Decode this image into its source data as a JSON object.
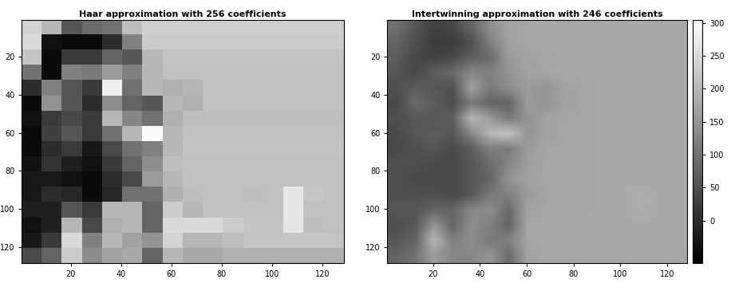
{
  "chart_data": [
    {
      "type": "heatmap",
      "title": "Haar approximation with 256 coefficients",
      "xlim": [
        0.5,
        128.5
      ],
      "ylim": [
        128.5,
        0.5
      ],
      "xticks": [
        20,
        40,
        60,
        80,
        100,
        120
      ],
      "yticks": [
        20,
        40,
        60,
        80,
        100,
        120
      ],
      "color_range": [
        -65,
        305
      ],
      "cells": [
        [
          240,
          200,
          60,
          90,
          100,
          210,
          235,
          235,
          235,
          235,
          235,
          235,
          235,
          235,
          235,
          235
        ],
        [
          250,
          -40,
          -50,
          -50,
          0,
          120,
          230,
          230,
          230,
          230,
          230,
          230,
          230,
          230,
          230,
          230
        ],
        [
          220,
          -50,
          20,
          20,
          80,
          60,
          200,
          220,
          220,
          220,
          220,
          220,
          220,
          220,
          220,
          220
        ],
        [
          100,
          -50,
          120,
          110,
          160,
          120,
          200,
          215,
          215,
          215,
          215,
          215,
          215,
          215,
          215,
          215
        ],
        [
          0,
          120,
          60,
          20,
          280,
          100,
          200,
          190,
          200,
          215,
          215,
          215,
          215,
          215,
          215,
          215
        ],
        [
          -50,
          150,
          60,
          0,
          140,
          80,
          60,
          200,
          190,
          215,
          215,
          215,
          215,
          215,
          215,
          215
        ],
        [
          -40,
          20,
          40,
          20,
          200,
          130,
          100,
          190,
          210,
          210,
          210,
          210,
          210,
          210,
          210,
          210
        ],
        [
          -50,
          30,
          60,
          20,
          100,
          200,
          300,
          200,
          215,
          215,
          215,
          215,
          215,
          215,
          215,
          215
        ],
        [
          -50,
          0,
          20,
          -30,
          40,
          100,
          120,
          200,
          220,
          220,
          220,
          220,
          220,
          220,
          220,
          220
        ],
        [
          -40,
          10,
          -20,
          -40,
          20,
          80,
          140,
          210,
          215,
          215,
          215,
          215,
          215,
          215,
          215,
          215
        ],
        [
          -30,
          -30,
          -40,
          -50,
          0,
          40,
          160,
          200,
          215,
          215,
          215,
          215,
          215,
          215,
          215,
          215
        ],
        [
          -30,
          0,
          -10,
          -50,
          -10,
          100,
          100,
          190,
          210,
          215,
          215,
          210,
          215,
          270,
          220,
          215
        ],
        [
          -20,
          -20,
          60,
          20,
          200,
          200,
          80,
          230,
          200,
          215,
          215,
          215,
          215,
          270,
          215,
          215
        ],
        [
          -40,
          -20,
          200,
          40,
          190,
          200,
          80,
          250,
          250,
          250,
          230,
          220,
          220,
          270,
          210,
          215
        ],
        [
          -30,
          20,
          250,
          120,
          200,
          170,
          150,
          240,
          200,
          200,
          210,
          220,
          220,
          220,
          220,
          220
        ],
        [
          40,
          80,
          230,
          140,
          170,
          180,
          80,
          200,
          180,
          180,
          190,
          190,
          190,
          190,
          190,
          190
        ]
      ]
    },
    {
      "type": "heatmap",
      "title": "Intertwinning approximation with 246 coefficients",
      "xlim": [
        0.5,
        128.5
      ],
      "ylim": [
        128.5,
        0.5
      ],
      "xticks": [
        20,
        40,
        60,
        80,
        100,
        120
      ],
      "yticks": [
        20,
        40,
        60,
        80,
        100,
        120
      ],
      "colorbar_range": [
        -65,
        305
      ],
      "colorbar_ticks": [
        0,
        50,
        100,
        150,
        200,
        250,
        300
      ],
      "cells": [
        [
          100,
          60,
          30,
          40,
          80,
          140,
          170,
          175,
          180,
          180,
          180,
          180,
          180,
          180,
          180,
          180
        ],
        [
          80,
          50,
          20,
          20,
          50,
          120,
          170,
          175,
          180,
          180,
          180,
          180,
          180,
          180,
          180,
          180
        ],
        [
          70,
          40,
          30,
          40,
          70,
          90,
          160,
          170,
          175,
          180,
          180,
          180,
          180,
          180,
          180,
          180
        ],
        [
          60,
          40,
          70,
          90,
          130,
          120,
          150,
          170,
          175,
          180,
          180,
          180,
          180,
          180,
          180,
          180
        ],
        [
          50,
          70,
          60,
          50,
          170,
          110,
          140,
          160,
          150,
          170,
          175,
          180,
          180,
          180,
          180,
          180
        ],
        [
          40,
          90,
          70,
          50,
          110,
          80,
          80,
          160,
          150,
          170,
          175,
          180,
          180,
          180,
          180,
          180
        ],
        [
          50,
          60,
          60,
          70,
          200,
          160,
          110,
          150,
          170,
          175,
          175,
          180,
          180,
          180,
          180,
          180
        ],
        [
          40,
          60,
          70,
          60,
          130,
          200,
          220,
          150,
          170,
          175,
          175,
          180,
          180,
          180,
          180,
          180
        ],
        [
          40,
          50,
          60,
          40,
          70,
          120,
          110,
          160,
          175,
          175,
          175,
          180,
          180,
          180,
          180,
          180
        ],
        [
          50,
          50,
          40,
          40,
          60,
          90,
          130,
          165,
          175,
          175,
          175,
          180,
          180,
          180,
          180,
          180
        ],
        [
          50,
          40,
          40,
          40,
          60,
          80,
          150,
          170,
          175,
          175,
          175,
          180,
          180,
          180,
          180,
          180
        ],
        [
          50,
          50,
          50,
          40,
          60,
          110,
          120,
          160,
          175,
          175,
          175,
          180,
          180,
          185,
          180,
          180
        ],
        [
          60,
          60,
          80,
          80,
          130,
          140,
          90,
          170,
          175,
          175,
          175,
          180,
          180,
          185,
          180,
          180
        ],
        [
          50,
          60,
          150,
          80,
          140,
          120,
          80,
          175,
          180,
          180,
          180,
          180,
          180,
          180,
          180,
          180
        ],
        [
          60,
          80,
          200,
          120,
          140,
          110,
          120,
          175,
          180,
          180,
          180,
          180,
          180,
          180,
          180,
          180
        ],
        [
          80,
          100,
          160,
          130,
          130,
          150,
          90,
          170,
          175,
          175,
          175,
          175,
          175,
          175,
          175,
          175
        ]
      ]
    }
  ]
}
